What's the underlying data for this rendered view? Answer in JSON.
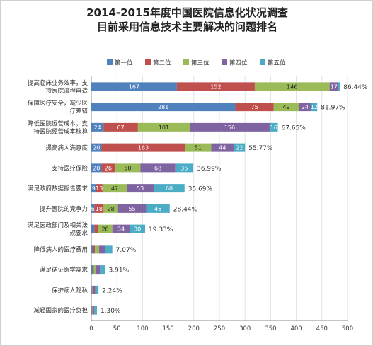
{
  "chart_data": {
    "type": "bar",
    "orientation": "horizontal",
    "stacked": true,
    "title": "2014-2015年度中国医院信息化状况调查",
    "subtitle": "目前采用信息技术主要解决的问题排名",
    "xlim": [
      0,
      500
    ],
    "xticks": [
      "0",
      "50",
      "100",
      "150",
      "200",
      "250",
      "300",
      "350",
      "400",
      "450",
      "500"
    ],
    "grid": true,
    "legend_position": "top",
    "categories": [
      [
        "提高临床业务效率，支",
        "持医院流程再造"
      ],
      [
        "保障医疗安全，减少医",
        "疗差错"
      ],
      [
        "降低医院运营成本，支",
        "持医院经营成本核算"
      ],
      [
        "提高病人满意度"
      ],
      [
        "支持医疗保险"
      ],
      [
        "满足政府数据报告要求"
      ],
      [
        "提升医院的竞争力"
      ],
      [
        "满足医政部门及相关法",
        "规要求"
      ],
      [
        "降低病人的医疗费用"
      ],
      [
        "满足循证医学需求"
      ],
      [
        "保护病人隐私"
      ],
      [
        "减轻国家的医疗负担"
      ]
    ],
    "series": [
      {
        "name": "第一位",
        "color": "#4f81bd",
        "values": [
          167,
          281,
          24,
          20,
          20,
          9,
          6,
          6,
          4,
          3,
          1,
          1
        ]
      },
      {
        "name": "第二位",
        "color": "#c0504d",
        "values": [
          152,
          75,
          67,
          163,
          26,
          13,
          18,
          7,
          3,
          2,
          1,
          1
        ]
      },
      {
        "name": "第三位",
        "color": "#9bbb59",
        "values": [
          146,
          49,
          101,
          51,
          50,
          47,
          28,
          28,
          8,
          4,
          2,
          1
        ]
      },
      {
        "name": "第四位",
        "color": "#8064a2",
        "values": [
          17,
          24,
          156,
          44,
          68,
          53,
          55,
          34,
          12,
          8,
          4,
          3
        ]
      },
      {
        "name": "第五位",
        "color": "#4bacc6",
        "values": [
          3,
          12,
          16,
          22,
          35,
          60,
          46,
          30,
          14,
          10,
          6,
          5
        ]
      }
    ],
    "segment_labels": [
      [
        "167",
        "152",
        "146",
        "17",
        ""
      ],
      [
        "281",
        "75",
        "49",
        "24",
        "12"
      ],
      [
        "24",
        "67",
        "101",
        "156",
        "16"
      ],
      [
        "20",
        "163",
        "51",
        "44",
        "22"
      ],
      [
        "20",
        "26",
        "50",
        "68",
        "35"
      ],
      [
        "9",
        "13",
        "47",
        "53",
        "60"
      ],
      [
        "6",
        "18",
        "28",
        "55",
        "46"
      ],
      [
        "",
        "",
        "28",
        "34",
        "30"
      ],
      [
        "",
        "",
        "",
        "",
        ""
      ],
      [
        "",
        "",
        "",
        "",
        ""
      ],
      [
        "",
        "",
        "",
        "",
        ""
      ],
      [
        "",
        "",
        "",
        "",
        ""
      ]
    ],
    "percent_labels": [
      "86.44%",
      "81.97%",
      "67.65%",
      "55.77%",
      "36.99%",
      "35.69%",
      "28.44%",
      "19.33%",
      "7.07%",
      "3.91%",
      "2.24%",
      "1.30%"
    ]
  }
}
